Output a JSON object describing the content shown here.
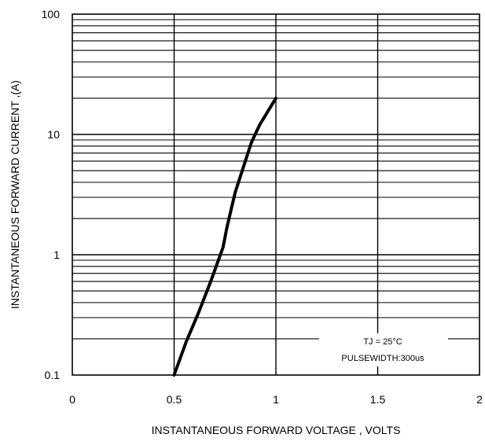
{
  "chart_data": {
    "type": "line",
    "title": "",
    "xlabel": "INSTANTANEOUS FORWARD VOLTAGE , VOLTS",
    "ylabel": "INSTANTANEOUS  FORWARD CURRENT ,(A)",
    "xlim": [
      0,
      2
    ],
    "ylim": [
      0.1,
      100
    ],
    "yscale": "log",
    "grid": true,
    "x_tick_labels": [
      "0",
      "0.5",
      "1",
      "1.5",
      "2"
    ],
    "y_tick_labels": [
      "0.1",
      "1",
      "10",
      "100"
    ],
    "annotations": [
      "TJ = 25°C",
      "PULSEWIDTH:300us"
    ],
    "series": [
      {
        "x": [
          0.5,
          0.56,
          0.62,
          0.68,
          0.74,
          0.76,
          0.8,
          0.85,
          0.88,
          0.92,
          0.96,
          1.0
        ],
        "y": [
          0.1,
          0.19,
          0.33,
          0.6,
          1.15,
          1.7,
          3.3,
          6.0,
          8.6,
          12.0,
          15.5,
          20.0
        ]
      }
    ]
  }
}
